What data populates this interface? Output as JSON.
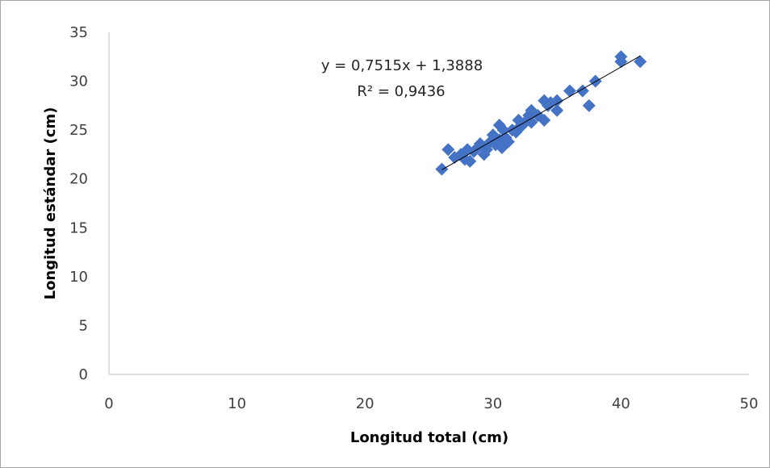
{
  "chart_data": {
    "type": "scatter",
    "title": "",
    "xlabel": "Longitud total (cm)",
    "ylabel": "Longitud estándar (cm)",
    "xlim": [
      0,
      50
    ],
    "ylim": [
      0,
      35
    ],
    "x_ticks": [
      "0",
      "10",
      "20",
      "30",
      "40",
      "50"
    ],
    "y_ticks": [
      "0",
      "5",
      "10",
      "15",
      "20",
      "25",
      "30",
      "35"
    ],
    "grid": false,
    "legend": "none",
    "marker_color": "#4472C4",
    "trendline_color": "#000000",
    "series": [
      {
        "points": [
          [
            26.0,
            21.0
          ],
          [
            26.5,
            23.0
          ],
          [
            27.0,
            22.2
          ],
          [
            27.5,
            22.5
          ],
          [
            27.8,
            22.0
          ],
          [
            28.0,
            23.0
          ],
          [
            28.2,
            21.8
          ],
          [
            28.5,
            22.8
          ],
          [
            28.8,
            23.2
          ],
          [
            29.0,
            23.6
          ],
          [
            29.3,
            22.5
          ],
          [
            29.5,
            23.0
          ],
          [
            29.8,
            23.8
          ],
          [
            30.0,
            24.5
          ],
          [
            30.2,
            23.5
          ],
          [
            30.5,
            25.5
          ],
          [
            30.5,
            24.0
          ],
          [
            30.7,
            23.2
          ],
          [
            30.8,
            25.0
          ],
          [
            31.0,
            24.2
          ],
          [
            31.2,
            23.8
          ],
          [
            31.5,
            25.0
          ],
          [
            31.8,
            24.8
          ],
          [
            32.0,
            26.0
          ],
          [
            32.0,
            25.2
          ],
          [
            32.3,
            25.5
          ],
          [
            32.5,
            25.8
          ],
          [
            32.8,
            26.5
          ],
          [
            33.0,
            27.0
          ],
          [
            33.0,
            25.8
          ],
          [
            33.5,
            26.5
          ],
          [
            34.0,
            28.0
          ],
          [
            34.0,
            26.0
          ],
          [
            34.3,
            27.5
          ],
          [
            34.5,
            27.8
          ],
          [
            35.0,
            27.0
          ],
          [
            35.0,
            28.0
          ],
          [
            36.0,
            29.0
          ],
          [
            37.0,
            29.0
          ],
          [
            37.5,
            27.5
          ],
          [
            38.0,
            30.0
          ],
          [
            40.0,
            32.0
          ],
          [
            40.0,
            32.5
          ],
          [
            41.5,
            32.0
          ]
        ]
      }
    ],
    "trendline": {
      "slope": 0.7515,
      "intercept": 1.3888,
      "x_range": [
        26.0,
        41.5
      ],
      "equation_text": "y = 0,7515x + 1,3888",
      "r2_text": "R² = 0,9436"
    }
  }
}
